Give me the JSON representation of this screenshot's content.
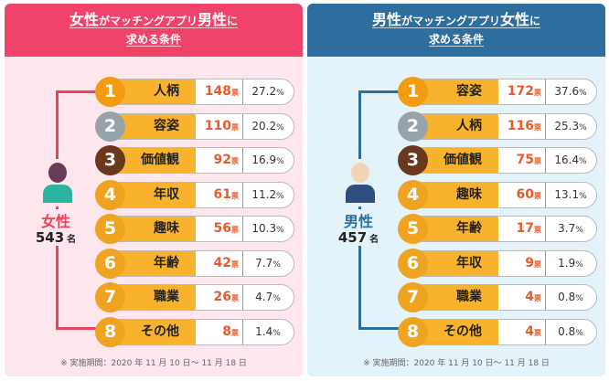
{
  "panels": [
    {
      "title": [
        [
          {
            "text": "女性",
            "big": true
          },
          {
            "text": "がマッチングアプリ",
            "big": false
          },
          {
            "text": "男性",
            "big": true
          },
          {
            "text": "に",
            "big": false
          }
        ],
        [
          {
            "text": "求める条件",
            "big": false
          }
        ]
      ],
      "group": "女性",
      "count": 543,
      "count_unit": "名",
      "vote_unit": "票",
      "percent_unit": "%",
      "rows": [
        {
          "rank": 1,
          "label": "人柄",
          "votes": 148,
          "percent": 27.2
        },
        {
          "rank": 2,
          "label": "容姿",
          "votes": 110,
          "percent": 20.2
        },
        {
          "rank": 3,
          "label": "価値観",
          "votes": 92,
          "percent": 16.9
        },
        {
          "rank": 4,
          "label": "年収",
          "votes": 61,
          "percent": 11.2
        },
        {
          "rank": 5,
          "label": "趣味",
          "votes": 56,
          "percent": 10.3
        },
        {
          "rank": 6,
          "label": "年齢",
          "votes": 42,
          "percent": 7.7
        },
        {
          "rank": 7,
          "label": "職業",
          "votes": 26,
          "percent": 4.7
        },
        {
          "rank": 8,
          "label": "その他",
          "votes": 8,
          "percent": 1.4
        }
      ],
      "note": "※ 実施期間：2020 年 11 月 10 日～ 11 月 18 日"
    },
    {
      "title": [
        [
          {
            "text": "男性",
            "big": true
          },
          {
            "text": "がマッチングアプリ",
            "big": false
          },
          {
            "text": "女性",
            "big": true
          },
          {
            "text": "に",
            "big": false
          }
        ],
        [
          {
            "text": "求める条件",
            "big": false
          }
        ]
      ],
      "group": "男性",
      "count": 457,
      "count_unit": "名",
      "vote_unit": "票",
      "percent_unit": "%",
      "rows": [
        {
          "rank": 1,
          "label": "容姿",
          "votes": 172,
          "percent": 37.6
        },
        {
          "rank": 2,
          "label": "人柄",
          "votes": 116,
          "percent": 25.3
        },
        {
          "rank": 3,
          "label": "価値観",
          "votes": 75,
          "percent": 16.4
        },
        {
          "rank": 4,
          "label": "趣味",
          "votes": 60,
          "percent": 13.1
        },
        {
          "rank": 5,
          "label": "年齢",
          "votes": 17,
          "percent": 3.7
        },
        {
          "rank": 6,
          "label": "年収",
          "votes": 9,
          "percent": 1.9
        },
        {
          "rank": 7,
          "label": "職業",
          "votes": 4,
          "percent": 0.8
        },
        {
          "rank": 8,
          "label": "その他",
          "votes": 4,
          "percent": 0.8
        }
      ],
      "note": "※ 実施期間：2020 年 11 月 10 日～ 11 月 18 日"
    }
  ]
}
